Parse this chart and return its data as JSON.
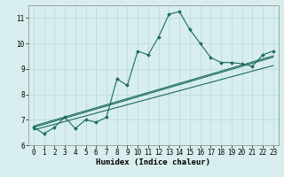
{
  "bg_color": "#d8eeee",
  "grid_color": "#b8d8d8",
  "line_color": "#1a6b5a",
  "xlabel": "Humidex (Indice chaleur)",
  "xlim": [
    -0.5,
    23.5
  ],
  "ylim": [
    6.0,
    11.5
  ],
  "yticks": [
    6,
    7,
    8,
    9,
    10,
    11
  ],
  "xticks": [
    0,
    1,
    2,
    3,
    4,
    5,
    6,
    7,
    8,
    9,
    10,
    11,
    12,
    13,
    14,
    15,
    16,
    17,
    18,
    19,
    20,
    21,
    22,
    23
  ],
  "series1_x": [
    0,
    1,
    2,
    3,
    4,
    5,
    6,
    7,
    8,
    9,
    10,
    11,
    12,
    13,
    14,
    15,
    16,
    17,
    18,
    19,
    20,
    21,
    22,
    23
  ],
  "series1_y": [
    6.7,
    6.45,
    6.7,
    7.1,
    6.65,
    7.0,
    6.9,
    7.1,
    8.6,
    8.35,
    9.7,
    9.55,
    10.25,
    11.15,
    11.25,
    10.55,
    10.0,
    9.45,
    9.25,
    9.25,
    9.2,
    9.1,
    9.55,
    9.7
  ],
  "series2_x": [
    0,
    1,
    2,
    3,
    4,
    5,
    6,
    7,
    8,
    9,
    10,
    11,
    12,
    13,
    14,
    15,
    16,
    17,
    18,
    19,
    20,
    21,
    22,
    23
  ],
  "series2_y": [
    6.6,
    6.71,
    6.82,
    6.93,
    7.04,
    7.15,
    7.26,
    7.37,
    7.48,
    7.59,
    7.7,
    7.81,
    7.92,
    8.03,
    8.14,
    8.25,
    8.36,
    8.47,
    8.58,
    8.69,
    8.8,
    8.91,
    9.02,
    9.13
  ],
  "series3_x": [
    0,
    1,
    2,
    3,
    4,
    5,
    6,
    7,
    8,
    9,
    10,
    11,
    12,
    13,
    14,
    15,
    16,
    17,
    18,
    19,
    20,
    21,
    22,
    23
  ],
  "series3_y": [
    6.7,
    6.82,
    6.94,
    7.06,
    7.18,
    7.3,
    7.42,
    7.54,
    7.66,
    7.78,
    7.9,
    8.02,
    8.14,
    8.26,
    8.38,
    8.5,
    8.62,
    8.74,
    8.86,
    8.98,
    9.1,
    9.22,
    9.34,
    9.46
  ],
  "series4_x": [
    0,
    1,
    2,
    3,
    4,
    5,
    6,
    7,
    8,
    9,
    10,
    11,
    12,
    13,
    14,
    15,
    16,
    17,
    18,
    19,
    20,
    21,
    22,
    23
  ],
  "series4_y": [
    6.75,
    6.87,
    6.99,
    7.11,
    7.23,
    7.35,
    7.47,
    7.59,
    7.71,
    7.83,
    7.95,
    8.07,
    8.19,
    8.31,
    8.43,
    8.55,
    8.67,
    8.79,
    8.91,
    9.03,
    9.15,
    9.27,
    9.39,
    9.51
  ],
  "marker": "D",
  "markersize": 2.0,
  "linewidth": 0.8,
  "label_fontsize": 6.5,
  "tick_fontsize": 5.5
}
